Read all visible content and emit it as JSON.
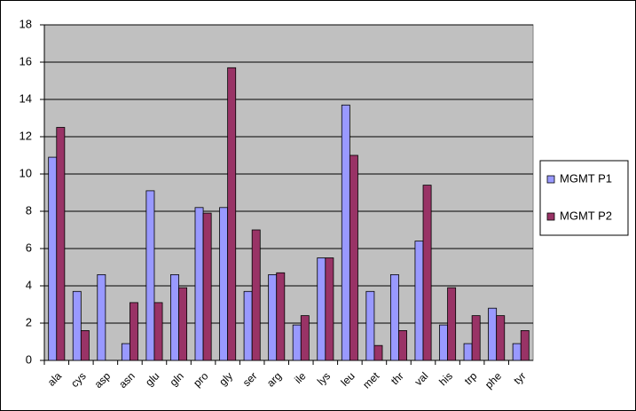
{
  "chart_data": {
    "type": "bar",
    "categories": [
      "ala",
      "cys",
      "asp",
      "asn",
      "glu",
      "gln",
      "pro",
      "gly",
      "ser",
      "arg",
      "ile",
      "lys",
      "leu",
      "met",
      "thr",
      "val",
      "his",
      "trp",
      "phe",
      "tyr"
    ],
    "series": [
      {
        "name": "MGMT P1",
        "color": "#9999ff",
        "values": [
          10.9,
          3.7,
          4.6,
          0.9,
          9.1,
          4.6,
          8.2,
          8.2,
          3.7,
          4.6,
          1.9,
          5.5,
          13.7,
          3.7,
          4.6,
          6.4,
          1.9,
          0.9,
          2.8,
          0.9
        ]
      },
      {
        "name": "MGMT P2",
        "color": "#993366",
        "values": [
          12.5,
          1.6,
          0,
          3.1,
          3.1,
          3.9,
          7.9,
          15.7,
          7.0,
          4.7,
          2.4,
          5.5,
          11.0,
          0.8,
          1.6,
          9.4,
          3.9,
          2.4,
          2.4,
          1.6
        ]
      }
    ],
    "ylim": [
      0,
      18
    ],
    "yticks": [
      0,
      2,
      4,
      6,
      8,
      10,
      12,
      14,
      16,
      18
    ],
    "grid": true,
    "legend": "right"
  }
}
